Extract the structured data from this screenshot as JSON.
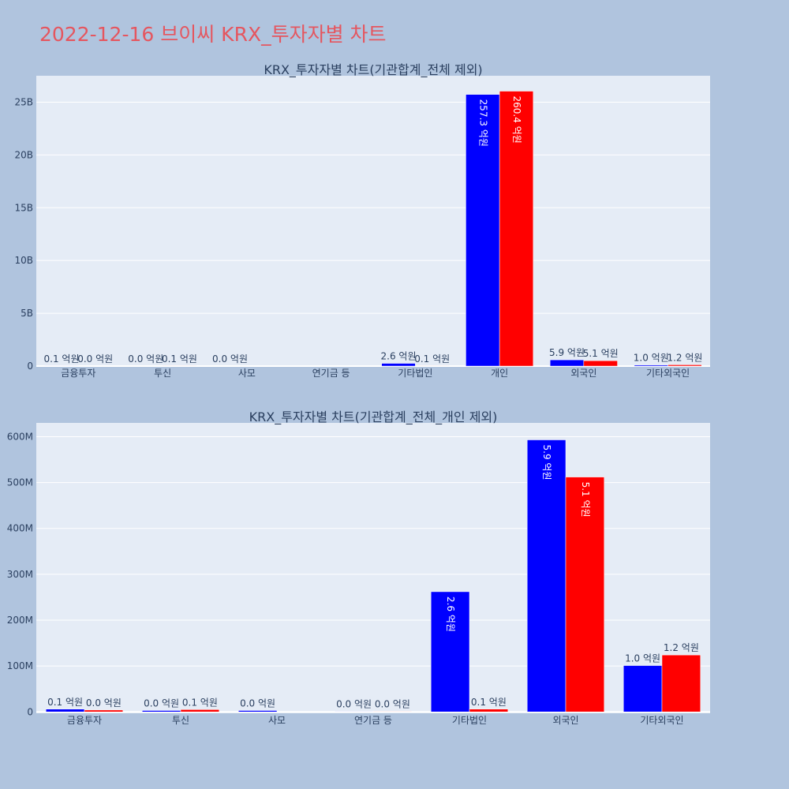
{
  "page": {
    "title": "2022-12-16 브이씨 KRX_투자자별 차트",
    "title_color": "#e5565f",
    "background": "#b0c4de",
    "plot_background": "#e5ecf6"
  },
  "chart_data": [
    {
      "type": "bar",
      "title": "KRX_투자자별 차트(기관합계_전체 제외)",
      "categories": [
        "금융투자",
        "투신",
        "사모",
        "연기금 등",
        "기타법인",
        "개인",
        "외국인",
        "기타외국인"
      ],
      "series": [
        {
          "color": "#0000ff",
          "values": [
            10000000,
            0,
            0,
            null,
            260000000,
            25730000000,
            590000000,
            100000000
          ],
          "labels": [
            "0.1 억원",
            "0.0 억원",
            "0.0 억원",
            "",
            "2.6 억원",
            "257.3 억원",
            "5.9 억원",
            "1.0 억원"
          ]
        },
        {
          "color": "#ff0000",
          "values": [
            0,
            10000000,
            null,
            null,
            10000000,
            26040000000,
            510000000,
            120000000
          ],
          "labels": [
            "0.0 억원",
            "0.1 억원",
            "",
            "",
            "0.1 억원",
            "260.4 억원",
            "5.1 억원",
            "1.2 억원"
          ]
        }
      ],
      "ylim": [
        0,
        27500000000
      ],
      "yticks": [
        0,
        5000000000,
        10000000000,
        15000000000,
        20000000000,
        25000000000
      ],
      "ytick_labels": [
        "0",
        "5B",
        "10B",
        "15B",
        "20B",
        "25B"
      ],
      "grid": true
    },
    {
      "type": "bar",
      "title": "KRX_투자자별 차트(기관합계_전체_개인 제외)",
      "categories": [
        "금융투자",
        "투신",
        "사모",
        "연기금 등",
        "기타법인",
        "외국인",
        "기타외국인"
      ],
      "series": [
        {
          "color": "#0000ff",
          "values": [
            6000000,
            3000000,
            3000000,
            1000000,
            262000000,
            593000000,
            101000000
          ],
          "labels": [
            "0.1 억원",
            "0.0 억원",
            "0.0 억원",
            "0.0 억원",
            "2.6 억원",
            "5.9 억원",
            "1.0 억원"
          ]
        },
        {
          "color": "#ff0000",
          "values": [
            4000000,
            5000000,
            null,
            1000000,
            6000000,
            512000000,
            124000000
          ],
          "labels": [
            "0.0 억원",
            "0.1 억원",
            "",
            "0.0 억원",
            "0.1 억원",
            "5.1 억원",
            "1.2 억원"
          ]
        }
      ],
      "ylim": [
        -3000000,
        630000000
      ],
      "yticks": [
        0,
        100000000,
        200000000,
        300000000,
        400000000,
        500000000,
        600000000
      ],
      "ytick_labels": [
        "0",
        "100M",
        "200M",
        "300M",
        "400M",
        "500M",
        "600M"
      ],
      "grid": true
    }
  ]
}
